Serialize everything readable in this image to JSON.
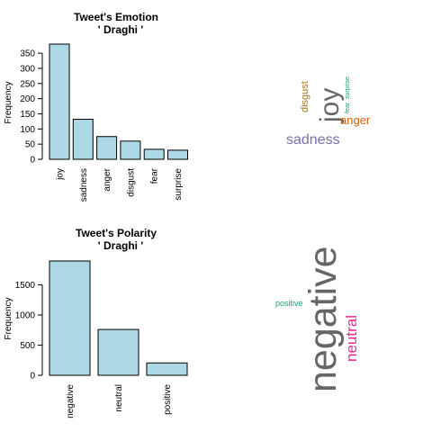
{
  "colors": {
    "bar": "#ADD8E6",
    "bar_stroke": "#000000"
  },
  "chart_data": [
    {
      "type": "bar",
      "title": "Tweet's Emotion",
      "subtitle": "' Draghi '",
      "xlabel": "",
      "ylabel": "Frequency",
      "categories": [
        "joy",
        "sadness",
        "anger",
        "disgust",
        "fear",
        "surprise"
      ],
      "values": [
        380,
        132,
        75,
        60,
        33,
        30
      ],
      "yticks": [
        0,
        50,
        100,
        150,
        200,
        250,
        300,
        350
      ],
      "ylim": [
        0,
        380
      ]
    },
    {
      "type": "bar",
      "title": "Tweet's Polarity",
      "subtitle": "' Draghi '",
      "xlabel": "",
      "ylabel": "Frequency",
      "categories": [
        "negative",
        "neutral",
        "positive"
      ],
      "values": [
        1895,
        760,
        205
      ],
      "yticks": [
        0,
        500,
        1000,
        1500
      ],
      "ylim": [
        0,
        1895
      ]
    }
  ],
  "wordclouds": [
    {
      "words": [
        {
          "text": "joy",
          "color": "#666666"
        },
        {
          "text": "sadness",
          "color": "#7570B3"
        },
        {
          "text": "anger",
          "color": "#D95F02"
        },
        {
          "text": "disgust",
          "color": "#A6761D"
        },
        {
          "text": "fear",
          "color": "#1B9E77"
        },
        {
          "text": "surprise",
          "color": "#1B9E77"
        }
      ]
    },
    {
      "words": [
        {
          "text": "negative",
          "color": "#666666"
        },
        {
          "text": "neutral",
          "color": "#E7298A"
        },
        {
          "text": "positive",
          "color": "#1B9E77"
        }
      ]
    }
  ]
}
